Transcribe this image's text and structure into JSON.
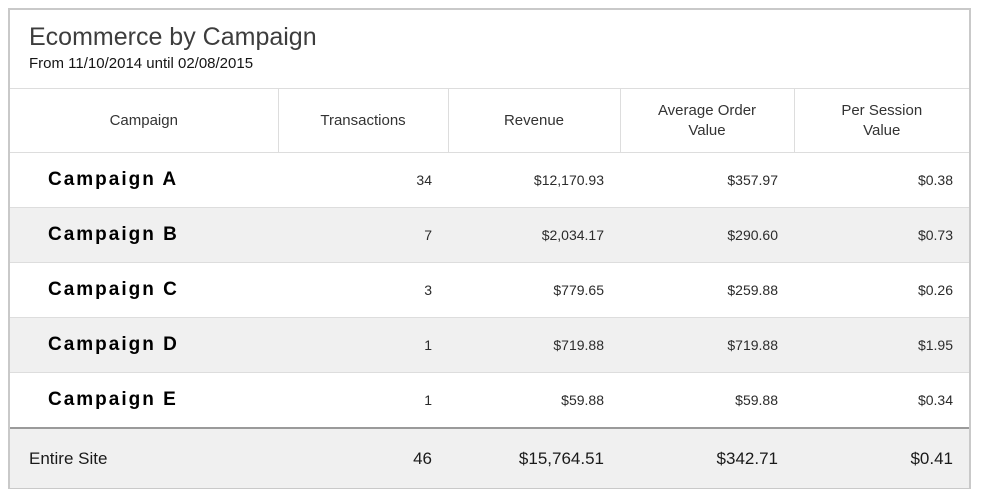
{
  "header": {
    "title": "Ecommerce by Campaign",
    "subtitle": "From 11/10/2014 until 02/08/2015"
  },
  "chart_data": {
    "type": "table",
    "title": "Ecommerce by Campaign",
    "subtitle": "From 11/10/2014 until 02/08/2015",
    "columns": [
      "Campaign",
      "Transactions",
      "Revenue",
      "Average Order Value",
      "Per Session Value"
    ],
    "rows": [
      [
        "Campaign A",
        34,
        12170.93,
        357.97,
        0.38
      ],
      [
        "Campaign B",
        7,
        2034.17,
        290.6,
        0.73
      ],
      [
        "Campaign C",
        3,
        779.65,
        259.88,
        0.26
      ],
      [
        "Campaign D",
        1,
        719.88,
        719.88,
        1.95
      ],
      [
        "Campaign E",
        1,
        59.88,
        59.88,
        0.34
      ]
    ],
    "footer": [
      "Entire Site",
      46,
      15764.51,
      342.71,
      0.41
    ]
  },
  "table": {
    "columns": [
      "Campaign",
      "Transactions",
      "Revenue",
      "Average Order Value",
      "Per Session Value"
    ],
    "rows": [
      {
        "campaign": "Campaign A",
        "transactions": "34",
        "revenue": "$12,170.93",
        "avg_order_value": "$357.97",
        "per_session_value": "$0.38"
      },
      {
        "campaign": "Campaign B",
        "transactions": "7",
        "revenue": "$2,034.17",
        "avg_order_value": "$290.60",
        "per_session_value": "$0.73"
      },
      {
        "campaign": "Campaign C",
        "transactions": "3",
        "revenue": "$779.65",
        "avg_order_value": "$259.88",
        "per_session_value": "$0.26"
      },
      {
        "campaign": "Campaign D",
        "transactions": "1",
        "revenue": "$719.88",
        "avg_order_value": "$719.88",
        "per_session_value": "$1.95"
      },
      {
        "campaign": "Campaign E",
        "transactions": "1",
        "revenue": "$59.88",
        "avg_order_value": "$59.88",
        "per_session_value": "$0.34"
      }
    ],
    "footer": {
      "campaign": "Entire Site",
      "transactions": "46",
      "revenue": "$15,764.51",
      "avg_order_value": "$342.71",
      "per_session_value": "$0.41"
    }
  }
}
